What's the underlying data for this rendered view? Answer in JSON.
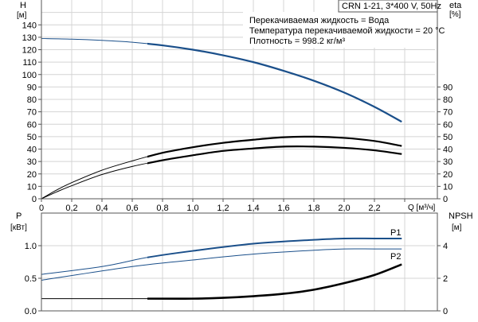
{
  "chart_data": [
    {
      "type": "line",
      "title": "CRN 1-21, 3*400 V, 50Hz",
      "annotations": [
        "Перекачиваемая жидкость = Вода",
        "Температура перекачиваемой жидкости = 20 °C",
        "Плотность = 998.2 кг/м³"
      ],
      "xlabel": "Q [м³/ч]",
      "ylabel": "H",
      "yunit": "[м]",
      "y2label": "eta",
      "y2unit": "[%]",
      "xlim": [
        0,
        2.6
      ],
      "ylim": [
        0,
        160
      ],
      "x_ticks": [
        "0",
        "0,2",
        "0,4",
        "0,6",
        "0,8",
        "1,0",
        "1,2",
        "1,4",
        "1,6",
        "1,8",
        "2,0",
        "2,2"
      ],
      "y_ticks": [
        "0",
        "10",
        "20",
        "30",
        "40",
        "50",
        "60",
        "70",
        "80",
        "90",
        "100",
        "110",
        "120",
        "130",
        "140"
      ],
      "y2_ticks": [
        "0",
        "10",
        "20",
        "30",
        "40",
        "50",
        "60",
        "70",
        "80",
        "90"
      ],
      "grid": true,
      "colors": {
        "head": "#1a4f8a",
        "eta": "#000000"
      },
      "series": [
        {
          "axis": "H",
          "color": "#1a4f8a",
          "x": [
            0,
            0.2,
            0.4,
            0.6,
            0.8,
            1.0,
            1.2,
            1.4,
            1.6,
            1.8,
            2.0,
            2.2,
            2.38
          ],
          "y": [
            129,
            128.5,
            127.5,
            126,
            123.5,
            120,
            115.5,
            110,
            103,
            95,
            85.5,
            74,
            62
          ]
        },
        {
          "axis": "eta",
          "color": "#000000",
          "x": [
            0,
            0.1,
            0.2,
            0.4,
            0.6,
            0.8,
            1.0,
            1.2,
            1.4,
            1.6,
            1.8,
            2.0,
            2.2,
            2.38
          ],
          "y": [
            0,
            7,
            13,
            23,
            30.5,
            37,
            41.5,
            45,
            47.5,
            49.5,
            50,
            49,
            46.5,
            42.5
          ]
        },
        {
          "axis": "eta",
          "color": "#000000",
          "x": [
            0,
            0.1,
            0.2,
            0.4,
            0.6,
            0.8,
            1.0,
            1.2,
            1.4,
            1.6,
            1.8,
            2.0,
            2.2,
            2.38
          ],
          "y": [
            0,
            5.5,
            10.5,
            19.5,
            26,
            31,
            35,
            38.5,
            40.5,
            42,
            42,
            41,
            39,
            36
          ]
        }
      ]
    },
    {
      "type": "line",
      "ylabel": "P",
      "yunit": "[кВт]",
      "y2label": "NPSH",
      "y2unit": "[м]",
      "xlim": [
        0,
        2.6
      ],
      "ylim": [
        0,
        1.5
      ],
      "y2lim": [
        0,
        6
      ],
      "y_ticks": [
        "0.0",
        "0.5",
        "1.0"
      ],
      "y2_ticks": [
        "0",
        "2",
        "4"
      ],
      "grid": true,
      "series": [
        {
          "name": "P1",
          "axis": "P",
          "color": "#1a4f8a",
          "x": [
            0,
            0.4,
            0.7,
            1.0,
            1.4,
            1.8,
            2.0,
            2.2,
            2.38
          ],
          "y": [
            0.56,
            0.68,
            0.82,
            0.92,
            1.03,
            1.09,
            1.11,
            1.11,
            1.11
          ]
        },
        {
          "name": "P2",
          "axis": "P",
          "color": "#1a4f8a",
          "x": [
            0,
            0.6,
            1.0,
            1.4,
            1.8,
            2.0,
            2.2,
            2.38
          ],
          "y": [
            0.47,
            0.68,
            0.78,
            0.87,
            0.93,
            0.95,
            0.95,
            0.95
          ]
        },
        {
          "axis": "NPSH",
          "color": "#000000",
          "x": [
            0,
            0.7,
            1.0,
            1.2,
            1.4,
            1.6,
            1.8,
            2.0,
            2.2,
            2.38
          ],
          "y": [
            0.75,
            0.75,
            0.75,
            0.8,
            0.9,
            1.05,
            1.3,
            1.7,
            2.2,
            2.85
          ]
        }
      ]
    }
  ]
}
